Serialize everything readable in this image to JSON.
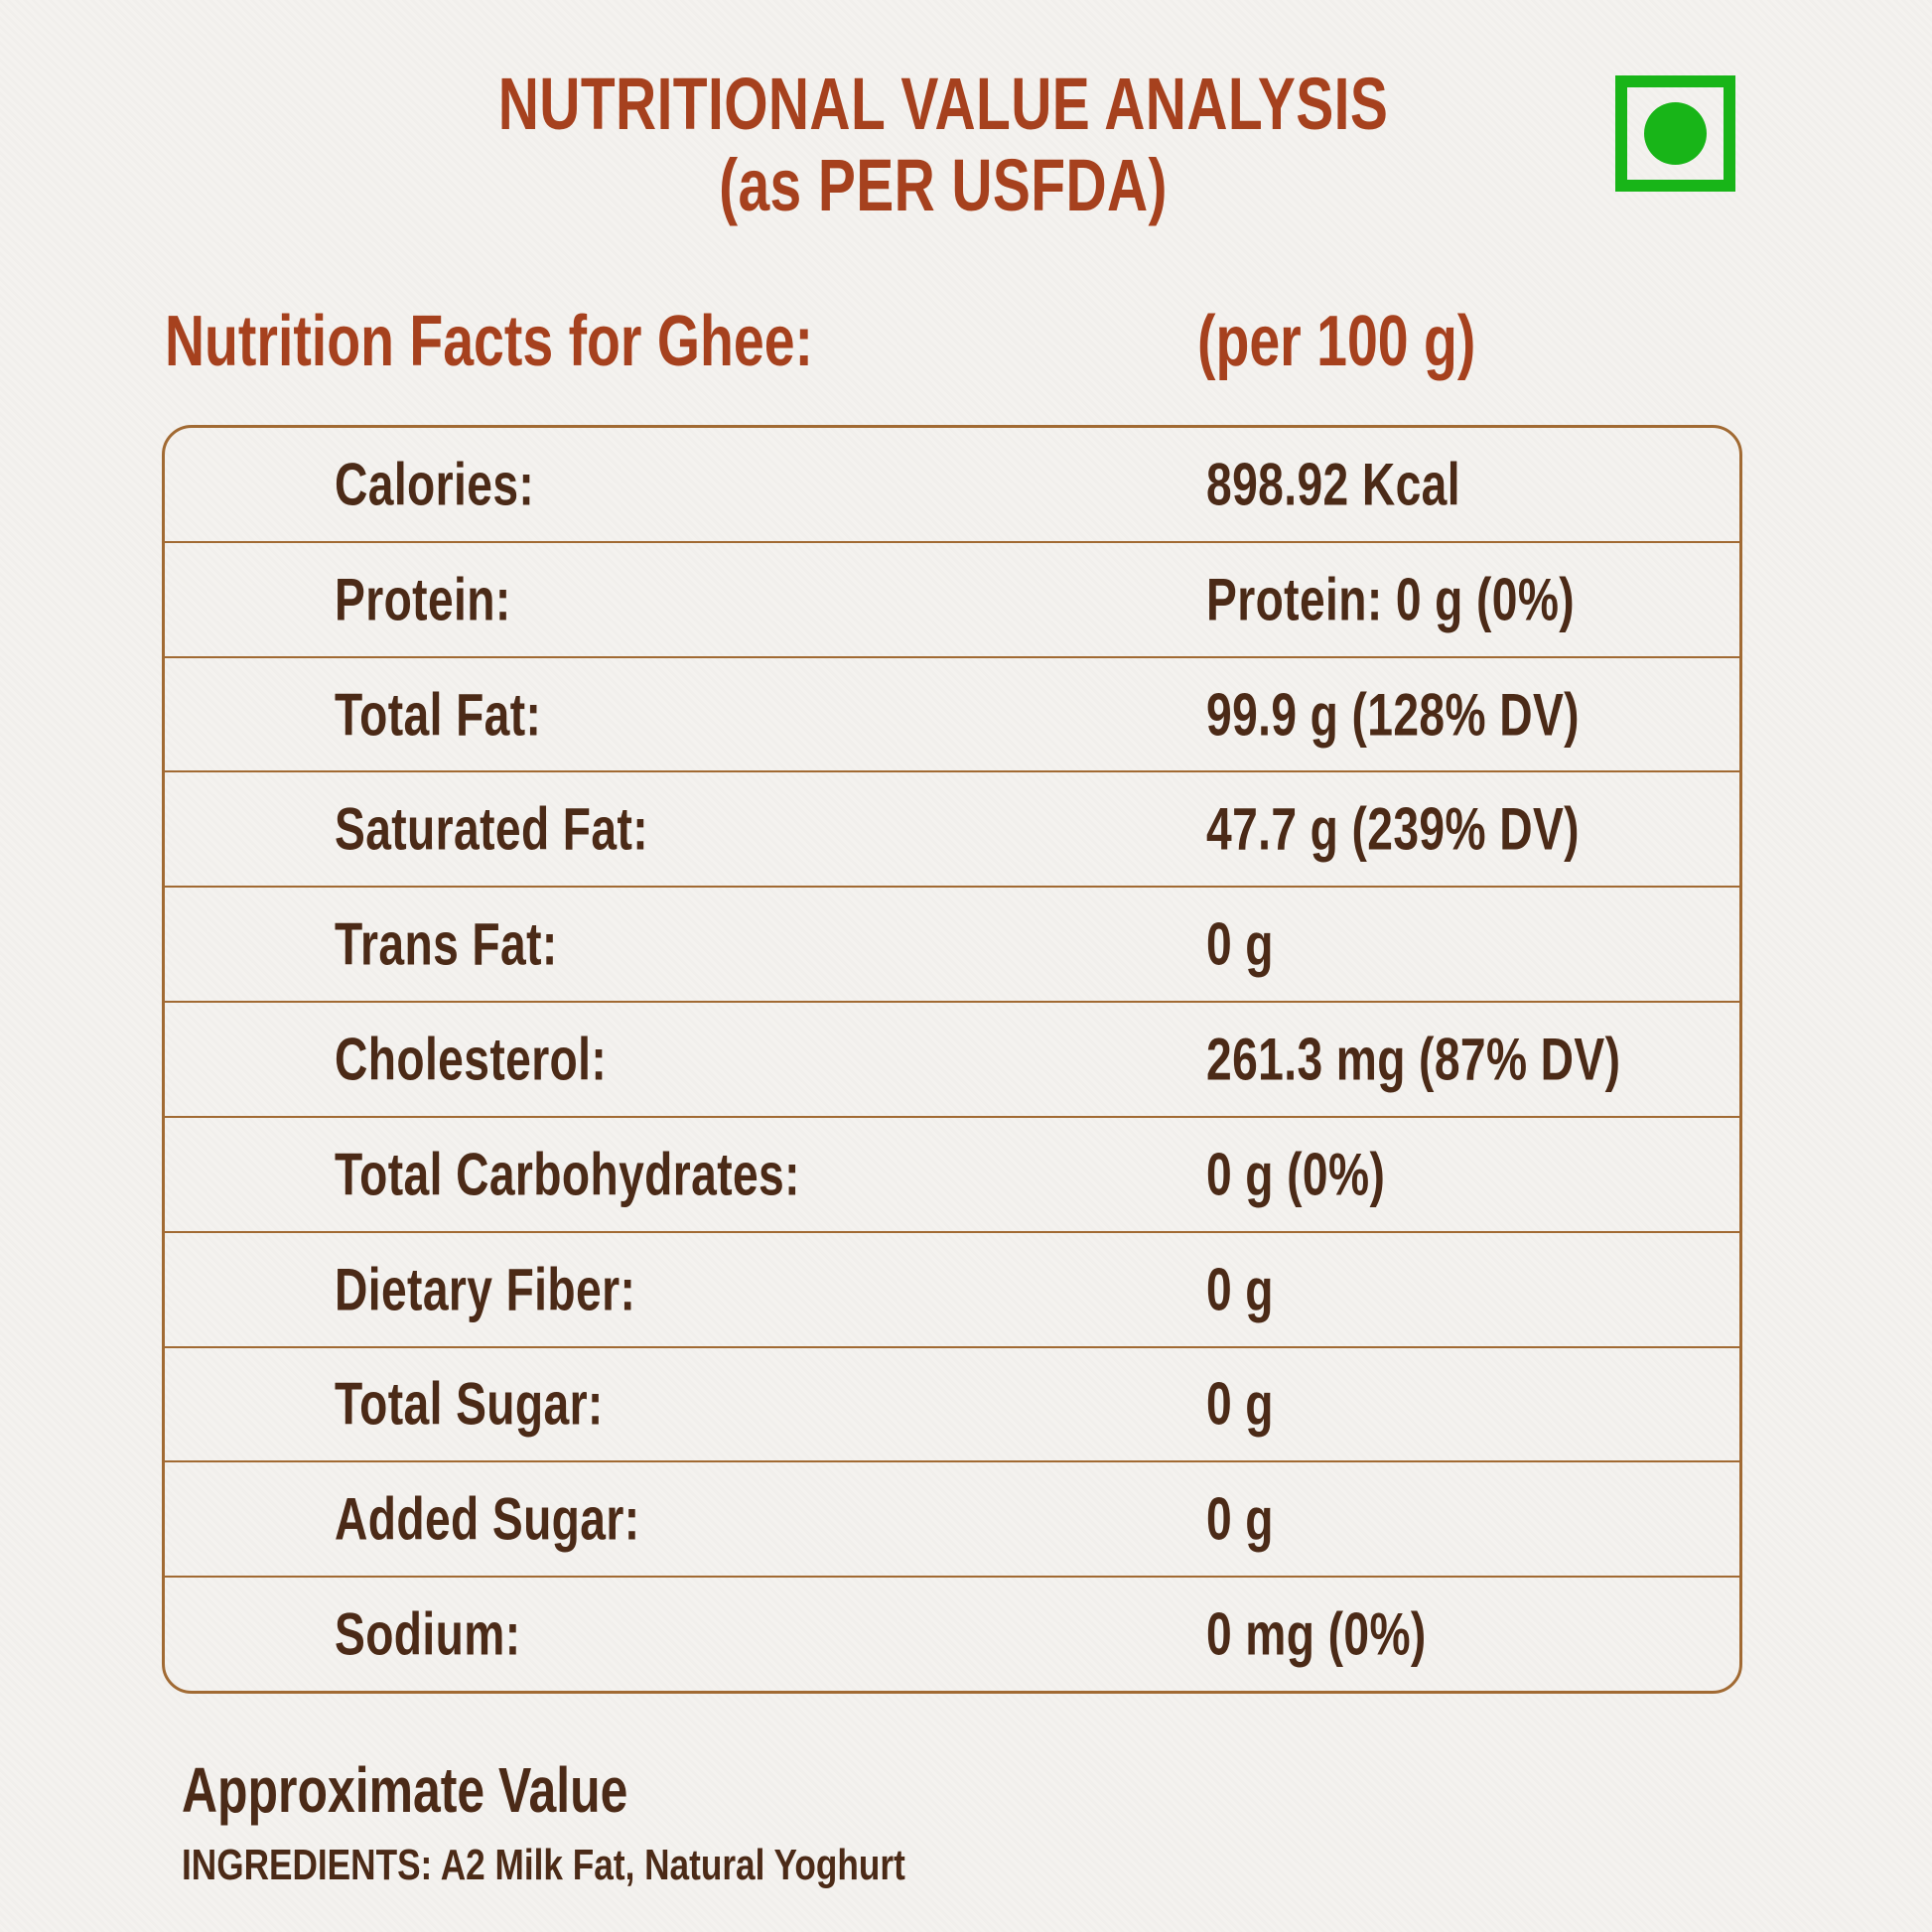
{
  "colors": {
    "background": "#f4f2ef",
    "title_rust": "#a6411e",
    "table_brown": "#4b2a17",
    "border_gold": "#a16a33",
    "veg_green": "#18b518"
  },
  "header": {
    "title_line1": "NUTRITIONAL VALUE ANALYSIS",
    "title_line2": "(as PER USFDA)",
    "veg_mark": "vegetarian-symbol"
  },
  "subheader": {
    "left": "Nutrition Facts for Ghee:",
    "right": "(per 100 g)"
  },
  "table": {
    "rows": [
      {
        "label": "Calories:",
        "value": "898.92 Kcal"
      },
      {
        "label": "Protein:",
        "value": "Protein: 0 g (0%)"
      },
      {
        "label": "Total Fat:",
        "value": "99.9 g (128% DV)"
      },
      {
        "label": "Saturated Fat:",
        "value": "47.7 g (239% DV)"
      },
      {
        "label": "Trans Fat:",
        "value": "0 g"
      },
      {
        "label": "Cholesterol:",
        "value": "261.3 mg (87% DV)"
      },
      {
        "label": "Total Carbohydrates:",
        "value": "0 g (0%)"
      },
      {
        "label": "Dietary Fiber:",
        "value": "0 g"
      },
      {
        "label": "Total Sugar:",
        "value": "0 g"
      },
      {
        "label": "Added Sugar:",
        "value": "0 g"
      },
      {
        "label": "Sodium:",
        "value": "0 mg (0%)"
      }
    ]
  },
  "footer": {
    "approximate": "Approximate Value",
    "ingredients": "INGREDIENTS: A2 Milk Fat, Natural Yoghurt"
  }
}
